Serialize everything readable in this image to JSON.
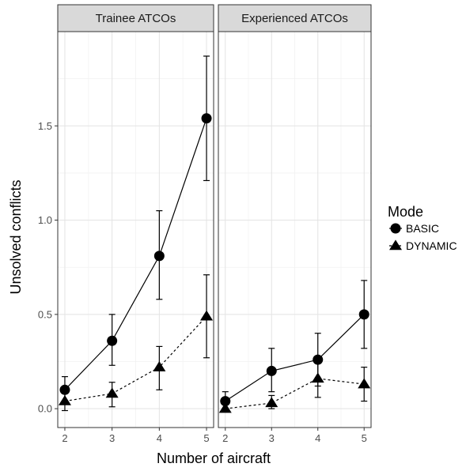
{
  "chart_data": {
    "type": "line",
    "xlabel": "Number of aircraft",
    "ylabel": "Unsolved conflicts",
    "x": [
      2,
      3,
      4,
      5
    ],
    "x_ticks": [
      "2",
      "3",
      "4",
      "5"
    ],
    "y_ticks": [
      "0.0",
      "0.5",
      "1.0",
      "1.5"
    ],
    "ylim": [
      -0.1,
      2.0
    ],
    "grid": true,
    "legend": {
      "title": "Mode",
      "position": "right",
      "entries": [
        {
          "label": "BASIC",
          "marker": "circle",
          "line": "solid"
        },
        {
          "label": "DYNAMIC",
          "marker": "triangle",
          "line": "dashed"
        }
      ]
    },
    "panels": [
      {
        "title": "Trainee ATCOs",
        "series": [
          {
            "name": "BASIC",
            "values": [
              0.1,
              0.36,
              0.81,
              1.54
            ],
            "error_low": [
              0.04,
              0.23,
              0.58,
              1.21
            ],
            "error_high": [
              0.17,
              0.5,
              1.05,
              1.87
            ]
          },
          {
            "name": "DYNAMIC",
            "values": [
              0.04,
              0.08,
              0.22,
              0.49
            ],
            "error_low": [
              -0.01,
              0.01,
              0.1,
              0.27
            ],
            "error_high": [
              0.09,
              0.14,
              0.33,
              0.71
            ]
          }
        ]
      },
      {
        "title": "Experienced ATCOs",
        "series": [
          {
            "name": "BASIC",
            "values": [
              0.04,
              0.2,
              0.26,
              0.5
            ],
            "error_low": [
              0.0,
              0.09,
              0.12,
              0.32
            ],
            "error_high": [
              0.09,
              0.32,
              0.4,
              0.68
            ]
          },
          {
            "name": "DYNAMIC",
            "values": [
              0.0,
              0.03,
              0.16,
              0.13
            ],
            "error_low": [
              -0.01,
              0.0,
              0.06,
              0.04
            ],
            "error_high": [
              0.05,
              0.07,
              0.26,
              0.22
            ]
          }
        ]
      }
    ]
  }
}
